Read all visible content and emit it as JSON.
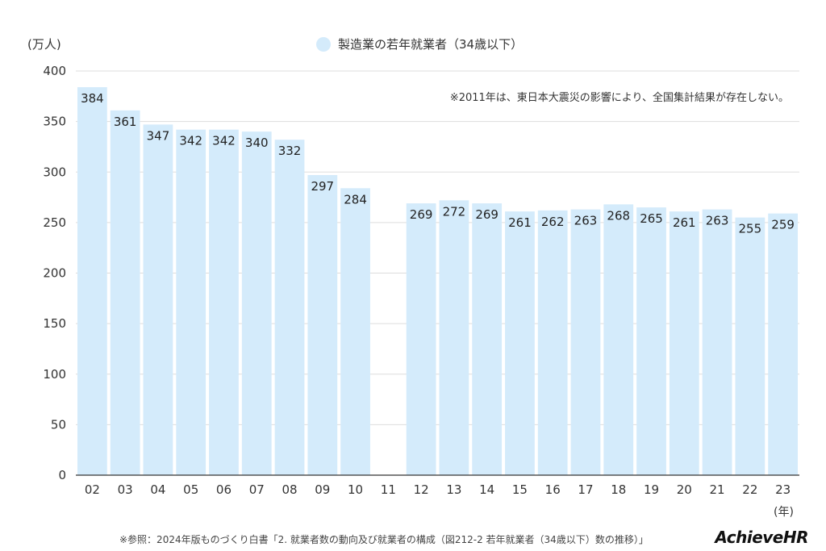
{
  "chart_data": {
    "type": "bar",
    "unit_label": "(万人)",
    "legend": [
      "製造業の若年就業者（34歳以下）"
    ],
    "note": "※2011年は、東日本大震災の影響により、全国集計結果が存在しない。",
    "x_unit": "(年)",
    "categories": [
      "02",
      "03",
      "04",
      "05",
      "06",
      "07",
      "08",
      "09",
      "10",
      "11",
      "12",
      "13",
      "14",
      "15",
      "16",
      "17",
      "18",
      "19",
      "20",
      "21",
      "22",
      "23"
    ],
    "series": [
      {
        "name": "製造業の若年就業者（34歳以下）",
        "values": [
          384,
          361,
          347,
          342,
          342,
          340,
          332,
          297,
          284,
          null,
          269,
          272,
          269,
          261,
          262,
          263,
          268,
          265,
          261,
          263,
          255,
          259
        ]
      }
    ],
    "ylim": [
      0,
      400
    ],
    "yticks": [
      0,
      50,
      100,
      150,
      200,
      250,
      300,
      350,
      400
    ],
    "grid": true,
    "legend_position": "top-center"
  },
  "colors": {
    "bar": "#d4ebfb",
    "grid": "#dddddd",
    "axis": "#333333",
    "legend_dot": "#d4ebfb"
  },
  "footer": {
    "source": "※参照：2024年版ものづくり白書「2. 就業者数の動向及び就業者の構成（図212-2 若年就業者（34歳以下）数の推移）」",
    "logo": "AchieveHR"
  }
}
